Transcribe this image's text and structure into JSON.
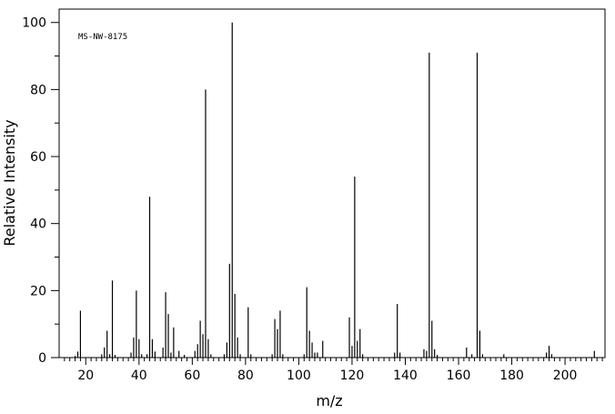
{
  "chart_data": {
    "type": "bar",
    "title": "",
    "annotation": "MS-NW-8175",
    "xlabel": "m/z",
    "ylabel": "Relative Intensity",
    "xlim": [
      10,
      215
    ],
    "ylim": [
      0,
      104
    ],
    "x_major_ticks": [
      20,
      40,
      60,
      80,
      100,
      120,
      140,
      160,
      180,
      200
    ],
    "x_tick_labels": [
      "20",
      "40",
      "60",
      "80",
      "100",
      "120",
      "140",
      "160",
      "180",
      "200"
    ],
    "x_minor_step": 2,
    "y_major_ticks": [
      0,
      20,
      40,
      60,
      80,
      100
    ],
    "y_tick_labels": [
      "0",
      "20",
      "40",
      "60",
      "80",
      "100"
    ],
    "y_minor_step": 10,
    "grid": false,
    "legend": "none",
    "color": "#000000",
    "peaks": [
      {
        "mz": 16,
        "intensity": 0.5
      },
      {
        "mz": 17,
        "intensity": 1.8
      },
      {
        "mz": 18,
        "intensity": 14
      },
      {
        "mz": 26,
        "intensity": 1.0
      },
      {
        "mz": 27,
        "intensity": 3.0
      },
      {
        "mz": 28,
        "intensity": 8.0
      },
      {
        "mz": 29,
        "intensity": 1.0
      },
      {
        "mz": 30,
        "intensity": 23
      },
      {
        "mz": 31,
        "intensity": 0.8
      },
      {
        "mz": 37,
        "intensity": 1.5
      },
      {
        "mz": 38,
        "intensity": 6.0
      },
      {
        "mz": 39,
        "intensity": 20
      },
      {
        "mz": 40,
        "intensity": 5.5
      },
      {
        "mz": 41,
        "intensity": 1.0
      },
      {
        "mz": 43,
        "intensity": 1.0
      },
      {
        "mz": 44,
        "intensity": 48
      },
      {
        "mz": 45,
        "intensity": 5.5
      },
      {
        "mz": 46,
        "intensity": 1.8
      },
      {
        "mz": 49,
        "intensity": 3.0
      },
      {
        "mz": 50,
        "intensity": 19.5
      },
      {
        "mz": 51,
        "intensity": 13
      },
      {
        "mz": 52,
        "intensity": 1.5
      },
      {
        "mz": 53,
        "intensity": 9.0
      },
      {
        "mz": 55,
        "intensity": 2.0
      },
      {
        "mz": 57,
        "intensity": 0.8
      },
      {
        "mz": 61,
        "intensity": 2.0
      },
      {
        "mz": 62,
        "intensity": 4.0
      },
      {
        "mz": 63,
        "intensity": 11
      },
      {
        "mz": 64,
        "intensity": 7.0
      },
      {
        "mz": 65,
        "intensity": 80
      },
      {
        "mz": 66,
        "intensity": 5.5
      },
      {
        "mz": 67,
        "intensity": 1.0
      },
      {
        "mz": 72,
        "intensity": 1.0
      },
      {
        "mz": 73,
        "intensity": 4.5
      },
      {
        "mz": 74,
        "intensity": 28
      },
      {
        "mz": 75,
        "intensity": 100
      },
      {
        "mz": 76,
        "intensity": 19
      },
      {
        "mz": 77,
        "intensity": 6.0
      },
      {
        "mz": 78,
        "intensity": 1.0
      },
      {
        "mz": 81,
        "intensity": 15
      },
      {
        "mz": 82,
        "intensity": 1.0
      },
      {
        "mz": 90,
        "intensity": 1.0
      },
      {
        "mz": 91,
        "intensity": 11.5
      },
      {
        "mz": 92,
        "intensity": 8.5
      },
      {
        "mz": 93,
        "intensity": 14
      },
      {
        "mz": 94,
        "intensity": 1.0
      },
      {
        "mz": 102,
        "intensity": 1.0
      },
      {
        "mz": 103,
        "intensity": 21
      },
      {
        "mz": 104,
        "intensity": 8.0
      },
      {
        "mz": 105,
        "intensity": 4.5
      },
      {
        "mz": 106,
        "intensity": 1.5
      },
      {
        "mz": 107,
        "intensity": 1.5
      },
      {
        "mz": 109,
        "intensity": 5.0
      },
      {
        "mz": 119,
        "intensity": 12
      },
      {
        "mz": 120,
        "intensity": 3.5
      },
      {
        "mz": 121,
        "intensity": 54
      },
      {
        "mz": 122,
        "intensity": 5.0
      },
      {
        "mz": 123,
        "intensity": 8.5
      },
      {
        "mz": 124,
        "intensity": 1.0
      },
      {
        "mz": 136,
        "intensity": 1.5
      },
      {
        "mz": 137,
        "intensity": 16
      },
      {
        "mz": 138,
        "intensity": 1.5
      },
      {
        "mz": 147,
        "intensity": 2.5
      },
      {
        "mz": 148,
        "intensity": 2.0
      },
      {
        "mz": 149,
        "intensity": 91
      },
      {
        "mz": 150,
        "intensity": 11
      },
      {
        "mz": 151,
        "intensity": 2.5
      },
      {
        "mz": 152,
        "intensity": 0.8
      },
      {
        "mz": 163,
        "intensity": 3.0
      },
      {
        "mz": 165,
        "intensity": 1.0
      },
      {
        "mz": 167,
        "intensity": 91
      },
      {
        "mz": 168,
        "intensity": 8.0
      },
      {
        "mz": 169,
        "intensity": 1.0
      },
      {
        "mz": 177,
        "intensity": 1.0
      },
      {
        "mz": 193,
        "intensity": 1.5
      },
      {
        "mz": 194,
        "intensity": 3.5
      },
      {
        "mz": 195,
        "intensity": 1.0
      },
      {
        "mz": 211,
        "intensity": 2.0
      }
    ]
  }
}
